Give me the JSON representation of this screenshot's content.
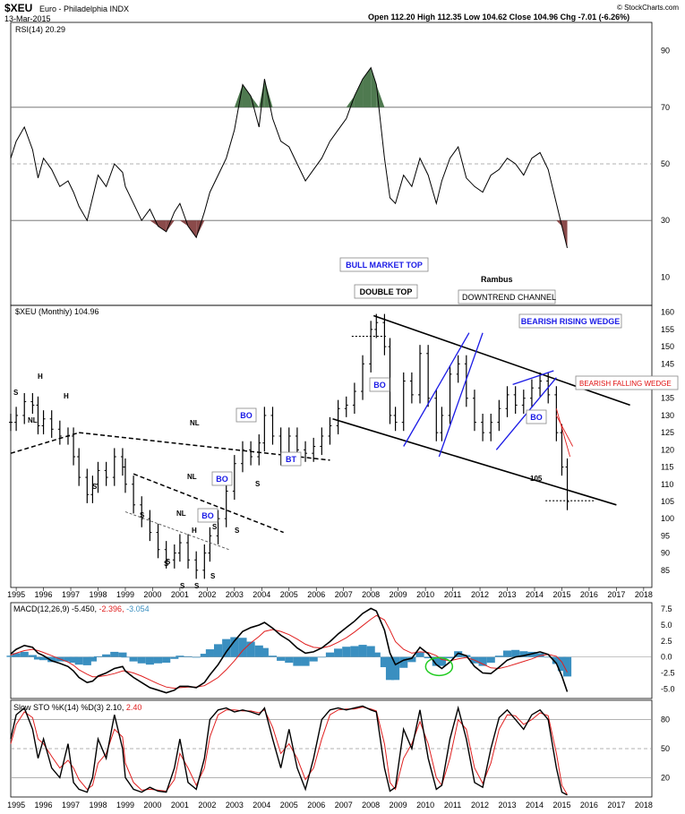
{
  "header": {
    "symbol": "$XEU",
    "name": "Euro - Philadelphia INDX",
    "date": "13-Mar-2015",
    "ohlc": "Open 112.20  High 112.35  Low 104.62  Close 104.96  Chg -7.01 (-6.26%)",
    "brand": "© StockCharts.com"
  },
  "colors": {
    "price": "#000000",
    "signal": "#e02020",
    "histogram": "#3a8fc0",
    "trendline_blue": "#1a1ae6",
    "rsi_overbought_fill": "#4f7a50",
    "rsi_oversold_fill": "#8a4a4a",
    "circle": "#22cc22"
  },
  "chart_data": [
    {
      "type": "line",
      "panel": "rsi",
      "label": "RSI(14) 20.29",
      "ylim": [
        0,
        100
      ],
      "yticks": [
        10,
        30,
        50,
        70,
        90
      ],
      "reference_lines": [
        30,
        50,
        70
      ],
      "x": [
        1994.8,
        1995.0,
        1995.3,
        1995.6,
        1995.8,
        1996.0,
        1996.3,
        1996.6,
        1996.9,
        1997.1,
        1997.3,
        1997.6,
        1997.8,
        1998.0,
        1998.3,
        1998.6,
        1998.9,
        1999.0,
        1999.3,
        1999.6,
        1999.9,
        2000.2,
        2000.5,
        2000.8,
        2001.0,
        2001.3,
        2001.6,
        2001.9,
        2002.1,
        2002.4,
        2002.7,
        2003.0,
        2003.3,
        2003.6,
        2003.9,
        2004.1,
        2004.4,
        2004.7,
        2005.0,
        2005.3,
        2005.6,
        2005.9,
        2006.2,
        2006.5,
        2006.8,
        2007.1,
        2007.4,
        2007.7,
        2008.0,
        2008.2,
        2008.5,
        2008.7,
        2008.9,
        2009.2,
        2009.5,
        2009.8,
        2010.1,
        2010.4,
        2010.6,
        2010.9,
        2011.2,
        2011.5,
        2011.8,
        2012.1,
        2012.4,
        2012.7,
        2013.0,
        2013.3,
        2013.6,
        2013.9,
        2014.2,
        2014.5,
        2014.8,
        2015.0,
        2015.2
      ],
      "y": [
        52,
        58,
        63,
        55,
        45,
        52,
        48,
        42,
        44,
        40,
        35,
        30,
        38,
        46,
        42,
        50,
        47,
        42,
        36,
        30,
        34,
        28,
        26,
        33,
        36,
        28,
        24,
        33,
        40,
        46,
        52,
        62,
        78,
        74,
        63,
        80,
        66,
        58,
        56,
        50,
        44,
        48,
        52,
        58,
        62,
        66,
        74,
        80,
        84,
        78,
        52,
        38,
        36,
        46,
        42,
        52,
        46,
        36,
        44,
        52,
        56,
        45,
        42,
        40,
        46,
        48,
        52,
        50,
        46,
        52,
        54,
        48,
        36,
        28,
        20.29
      ]
    },
    {
      "type": "bar",
      "panel": "price",
      "label": "$XEU (Monthly) 104.96",
      "ylim": [
        80,
        162
      ],
      "yticks": [
        85,
        90,
        95,
        100,
        105,
        110,
        115,
        120,
        125,
        130,
        135,
        140,
        145,
        150,
        155,
        160
      ],
      "x": [
        1994.8,
        1995.0,
        1995.3,
        1995.6,
        1995.8,
        1996.0,
        1996.3,
        1996.6,
        1996.9,
        1997.1,
        1997.3,
        1997.6,
        1997.8,
        1998.0,
        1998.3,
        1998.6,
        1998.9,
        1999.0,
        1999.3,
        1999.6,
        1999.9,
        2000.2,
        2000.5,
        2000.8,
        2001.0,
        2001.3,
        2001.6,
        2001.9,
        2002.1,
        2002.4,
        2002.7,
        2003.0,
        2003.3,
        2003.6,
        2003.9,
        2004.1,
        2004.4,
        2004.7,
        2005.0,
        2005.3,
        2005.6,
        2005.9,
        2006.2,
        2006.5,
        2006.8,
        2007.1,
        2007.4,
        2007.7,
        2008.0,
        2008.2,
        2008.5,
        2008.7,
        2008.9,
        2009.2,
        2009.5,
        2009.8,
        2010.1,
        2010.4,
        2010.6,
        2010.9,
        2011.2,
        2011.5,
        2011.8,
        2012.1,
        2012.4,
        2012.7,
        2013.0,
        2013.3,
        2013.6,
        2013.9,
        2014.2,
        2014.5,
        2014.8,
        2015.0,
        2015.2
      ],
      "close": [
        128,
        130,
        134,
        133,
        127,
        129,
        126,
        124,
        124,
        118,
        112,
        107,
        110,
        114,
        112,
        118,
        115,
        110,
        104,
        100,
        96,
        91,
        88,
        90,
        93,
        88,
        85,
        90,
        95,
        100,
        108,
        116,
        120,
        118,
        122,
        130,
        124,
        118,
        124,
        120,
        119,
        121,
        124,
        127,
        132,
        133,
        137,
        145,
        155,
        157,
        150,
        130,
        128,
        140,
        136,
        148,
        135,
        125,
        130,
        142,
        145,
        135,
        128,
        125,
        128,
        132,
        136,
        133,
        135,
        138,
        140,
        136,
        125,
        115,
        104.96
      ],
      "xticks": [
        "1995",
        "1996",
        "1997",
        "1998",
        "1999",
        "2000",
        "2001",
        "2002",
        "2003",
        "2004",
        "2005",
        "2006",
        "2007",
        "2008",
        "2009",
        "2010",
        "2011",
        "2012",
        "2013",
        "2014",
        "2015",
        "2016",
        "2017",
        "2018"
      ],
      "annotations": {
        "bull_market_top": "BULL MARKET TOP",
        "double_top": "DOUBLE TOP",
        "author": "Rambus",
        "downtrend_channel": "DOWNTREND CHANNEL",
        "bearish_rising_wedge": "BEARISH RISING WEDGE",
        "bearish_falling_wedge": "BEARISH FALLING WEDGE",
        "bo": "BO",
        "bt": "BT",
        "nl": "NL",
        "h": "H",
        "s": "S",
        "level_105": "105"
      }
    },
    {
      "type": "line",
      "panel": "macd",
      "label_main": "MACD(12,26,9) -5.450,",
      "label_signal": " -2.396,",
      "label_hist": " -3.054",
      "ylim": [
        -6.5,
        8.5
      ],
      "yticks": [
        "7.5",
        "5.0",
        "2.5",
        "0.0",
        "-2.5",
        "-5.0"
      ],
      "x": [
        1994.8,
        1995.0,
        1995.3,
        1995.6,
        1995.8,
        1996.0,
        1996.3,
        1996.6,
        1996.9,
        1997.1,
        1997.3,
        1997.6,
        1997.8,
        1998.0,
        1998.3,
        1998.6,
        1998.9,
        1999.0,
        1999.3,
        1999.6,
        1999.9,
        2000.2,
        2000.5,
        2000.8,
        2001.0,
        2001.3,
        2001.6,
        2001.9,
        2002.1,
        2002.4,
        2002.7,
        2003.0,
        2003.3,
        2003.6,
        2003.9,
        2004.1,
        2004.4,
        2004.7,
        2005.0,
        2005.3,
        2005.6,
        2005.9,
        2006.2,
        2006.5,
        2006.8,
        2007.1,
        2007.4,
        2007.7,
        2008.0,
        2008.2,
        2008.5,
        2008.7,
        2008.9,
        2009.2,
        2009.5,
        2009.8,
        2010.1,
        2010.4,
        2010.6,
        2010.9,
        2011.2,
        2011.5,
        2011.8,
        2012.1,
        2012.4,
        2012.7,
        2013.0,
        2013.3,
        2013.6,
        2013.9,
        2014.2,
        2014.5,
        2014.8,
        2015.0,
        2015.2
      ],
      "macd": [
        0.5,
        1.2,
        1.8,
        1.5,
        0.6,
        0.2,
        -0.6,
        -1.0,
        -1.5,
        -2.2,
        -3.2,
        -4.0,
        -3.8,
        -3.0,
        -2.5,
        -1.8,
        -1.5,
        -2.2,
        -3.2,
        -4.0,
        -4.8,
        -5.2,
        -5.6,
        -5.2,
        -4.6,
        -4.6,
        -4.8,
        -4.0,
        -2.8,
        -1.2,
        0.8,
        2.5,
        4.0,
        4.6,
        5.0,
        5.4,
        4.5,
        3.4,
        2.6,
        1.4,
        0.6,
        0.8,
        1.4,
        2.4,
        3.6,
        4.6,
        5.6,
        6.8,
        7.6,
        7.2,
        4.2,
        0.6,
        -1.2,
        -0.5,
        -0.2,
        1.5,
        0.5,
        -1.2,
        -1.8,
        -0.8,
        0.6,
        0.2,
        -1.5,
        -2.5,
        -2.6,
        -1.6,
        -0.5,
        0.0,
        0.2,
        0.5,
        0.8,
        0.4,
        -1.0,
        -3.0,
        -5.45
      ],
      "signal": [
        0.3,
        0.6,
        1.0,
        1.2,
        1.0,
        0.7,
        0.2,
        -0.3,
        -0.8,
        -1.3,
        -2.0,
        -2.7,
        -3.1,
        -3.1,
        -2.9,
        -2.6,
        -2.2,
        -2.2,
        -2.5,
        -3.0,
        -3.6,
        -4.2,
        -4.7,
        -4.9,
        -4.8,
        -4.7,
        -4.7,
        -4.5,
        -4.0,
        -3.2,
        -2.0,
        -0.6,
        1.0,
        2.2,
        3.2,
        4.0,
        4.3,
        4.0,
        3.5,
        2.8,
        2.0,
        1.5,
        1.4,
        1.7,
        2.3,
        3.0,
        3.9,
        4.9,
        5.9,
        6.5,
        5.8,
        4.2,
        2.4,
        1.2,
        0.6,
        0.8,
        0.7,
        0.2,
        -0.4,
        -0.6,
        -0.3,
        -0.1,
        -0.5,
        -1.1,
        -1.7,
        -1.8,
        -1.5,
        -1.1,
        -0.7,
        -0.3,
        0.2,
        0.4,
        0.1,
        -0.8,
        -2.396
      ]
    },
    {
      "type": "line",
      "panel": "sto",
      "label_main": "Slow STO %K(14) %D(3) 2.10,",
      "label_signal": " 2.40",
      "ylim": [
        0,
        100
      ],
      "yticks": [
        20,
        50,
        80
      ],
      "x": [
        1994.8,
        1995.0,
        1995.3,
        1995.6,
        1995.8,
        1996.0,
        1996.3,
        1996.6,
        1996.9,
        1997.1,
        1997.3,
        1997.6,
        1997.8,
        1998.0,
        1998.3,
        1998.6,
        1998.9,
        1999.0,
        1999.3,
        1999.6,
        1999.9,
        2000.2,
        2000.5,
        2000.8,
        2001.0,
        2001.3,
        2001.6,
        2001.9,
        2002.1,
        2002.4,
        2002.7,
        2003.0,
        2003.3,
        2003.6,
        2003.9,
        2004.1,
        2004.4,
        2004.7,
        2005.0,
        2005.3,
        2005.6,
        2005.9,
        2006.2,
        2006.5,
        2006.8,
        2007.1,
        2007.4,
        2007.7,
        2008.0,
        2008.2,
        2008.5,
        2008.7,
        2008.9,
        2009.2,
        2009.5,
        2009.8,
        2010.1,
        2010.4,
        2010.6,
        2010.9,
        2011.2,
        2011.5,
        2011.8,
        2012.1,
        2012.4,
        2012.7,
        2013.0,
        2013.3,
        2013.6,
        2013.9,
        2014.2,
        2014.5,
        2014.8,
        2015.0,
        2015.2
      ],
      "k": [
        60,
        85,
        92,
        70,
        40,
        60,
        30,
        20,
        55,
        15,
        8,
        5,
        20,
        60,
        40,
        85,
        50,
        20,
        8,
        5,
        10,
        6,
        5,
        30,
        60,
        15,
        8,
        40,
        80,
        90,
        92,
        88,
        90,
        88,
        85,
        92,
        60,
        30,
        70,
        30,
        8,
        40,
        80,
        90,
        92,
        90,
        92,
        94,
        90,
        88,
        30,
        6,
        10,
        70,
        50,
        90,
        40,
        8,
        12,
        60,
        92,
        60,
        15,
        10,
        50,
        82,
        90,
        80,
        70,
        85,
        90,
        80,
        30,
        5,
        2.1
      ],
      "d": [
        55,
        75,
        88,
        82,
        60,
        55,
        42,
        30,
        38,
        30,
        18,
        8,
        12,
        35,
        45,
        70,
        62,
        35,
        15,
        7,
        8,
        7,
        6,
        18,
        45,
        30,
        12,
        30,
        62,
        85,
        90,
        90,
        89,
        89,
        87,
        90,
        72,
        45,
        55,
        40,
        18,
        30,
        60,
        85,
        90,
        91,
        91,
        93,
        91,
        89,
        55,
        15,
        8,
        40,
        55,
        78,
        55,
        20,
        12,
        40,
        80,
        70,
        30,
        14,
        35,
        70,
        85,
        84,
        75,
        80,
        87,
        84,
        45,
        12,
        2.4
      ]
    }
  ]
}
